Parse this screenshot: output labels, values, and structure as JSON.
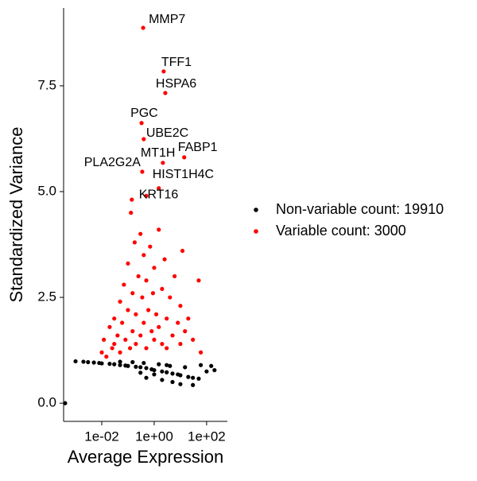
{
  "chart_data": {
    "type": "scatter",
    "x_label": "Average Expression",
    "y_label": "Standardized Variance",
    "log_x": true,
    "xlim": [
      0.00035,
      620
    ],
    "ylim": [
      -0.43,
      9.34
    ],
    "xticks": [
      {
        "value": 0.01,
        "label": "1e-02"
      },
      {
        "value": 1,
        "label": "1e+00"
      },
      {
        "value": 100,
        "label": "1e+02"
      }
    ],
    "yticks": [
      {
        "value": 0,
        "label": "0.0"
      },
      {
        "value": 2.5,
        "label": "2.5"
      },
      {
        "value": 5,
        "label": "5.0"
      },
      {
        "value": 7.5,
        "label": "7.5"
      }
    ],
    "grid": false,
    "legend": "right",
    "series": [
      {
        "name": "Non-variable count: 19910",
        "color": "#000000",
        "x": [
          0.0004,
          0.001,
          0.002,
          0.003,
          0.005,
          0.008,
          0.01,
          0.02,
          0.03,
          0.05,
          0.08,
          0.1,
          0.2,
          0.3,
          0.5,
          0.8,
          1,
          2,
          3,
          5,
          8,
          10,
          20,
          30,
          50,
          100,
          200,
          0.5,
          2,
          5,
          10,
          30,
          0.15,
          0.4,
          1.5,
          4,
          0.05,
          0.3,
          1,
          3,
          15,
          60,
          150
        ],
        "values": [
          0,
          0.99,
          0.98,
          0.97,
          0.96,
          0.95,
          0.94,
          0.93,
          0.92,
          0.9,
          0.89,
          0.88,
          0.86,
          0.85,
          0.83,
          0.8,
          0.78,
          0.75,
          0.73,
          0.7,
          0.68,
          0.66,
          0.62,
          0.6,
          0.58,
          0.75,
          0.78,
          0.6,
          0.55,
          0.5,
          0.45,
          0.43,
          0.97,
          0.95,
          0.92,
          0.88,
          0.98,
          0.72,
          0.68,
          0.9,
          0.85,
          0.9,
          0.88
        ]
      },
      {
        "name": "Variable count: 3000",
        "color": "#ff0000",
        "x": [
          0.01,
          0.012,
          0.015,
          0.02,
          0.025,
          0.03,
          0.03,
          0.04,
          0.05,
          0.05,
          0.06,
          0.07,
          0.08,
          0.1,
          0.1,
          0.12,
          0.15,
          0.15,
          0.18,
          0.2,
          0.2,
          0.25,
          0.3,
          0.3,
          0.35,
          0.4,
          0.4,
          0.5,
          0.5,
          0.6,
          0.7,
          0.8,
          0.9,
          1,
          1,
          1.2,
          1.5,
          1.5,
          2,
          2,
          2.5,
          3,
          3,
          4,
          5,
          6,
          8,
          10,
          10,
          12,
          15,
          20,
          30,
          50,
          60,
          0.13,
          0.5,
          0.38,
          2.3,
          2.65,
          0.33,
          0.4,
          14,
          2.15,
          0.35,
          1.5,
          0.14
        ],
        "values": [
          1.2,
          1.5,
          1.1,
          1.8,
          1.3,
          2.0,
          1.4,
          1.6,
          2.4,
          1.2,
          1.9,
          2.8,
          1.5,
          2.2,
          3.3,
          1.3,
          2.6,
          1.7,
          3.8,
          2.1,
          1.4,
          3.0,
          4.0,
          1.6,
          2.5,
          3.5,
          1.9,
          2.9,
          1.3,
          2.2,
          3.7,
          1.7,
          2.6,
          3.2,
          1.5,
          2.1,
          4.1,
          1.8,
          2.7,
          1.4,
          3.4,
          2.0,
          1.3,
          2.5,
          1.6,
          3.0,
          1.9,
          2.3,
          1.4,
          3.6,
          1.7,
          2.0,
          1.5,
          2.9,
          1.2,
          4.5,
          4.9,
          8.87,
          7.84,
          7.33,
          6.62,
          6.24,
          5.81,
          5.68,
          5.47,
          5.08,
          4.81
        ],
        "labels": [
          null,
          null,
          null,
          null,
          null,
          null,
          null,
          null,
          null,
          null,
          null,
          null,
          null,
          null,
          null,
          null,
          null,
          null,
          null,
          null,
          null,
          null,
          null,
          null,
          null,
          null,
          null,
          null,
          null,
          null,
          null,
          null,
          null,
          null,
          null,
          null,
          null,
          null,
          null,
          null,
          null,
          null,
          null,
          null,
          null,
          null,
          null,
          null,
          null,
          null,
          null,
          null,
          null,
          null,
          null,
          null,
          null,
          "MMP7",
          "TFF1",
          "HSPA6",
          "PGC",
          "UBE2C",
          "FABP1",
          "MT1H",
          "PLA2G2A",
          "HIST1H4C",
          "KRT16"
        ]
      }
    ]
  }
}
